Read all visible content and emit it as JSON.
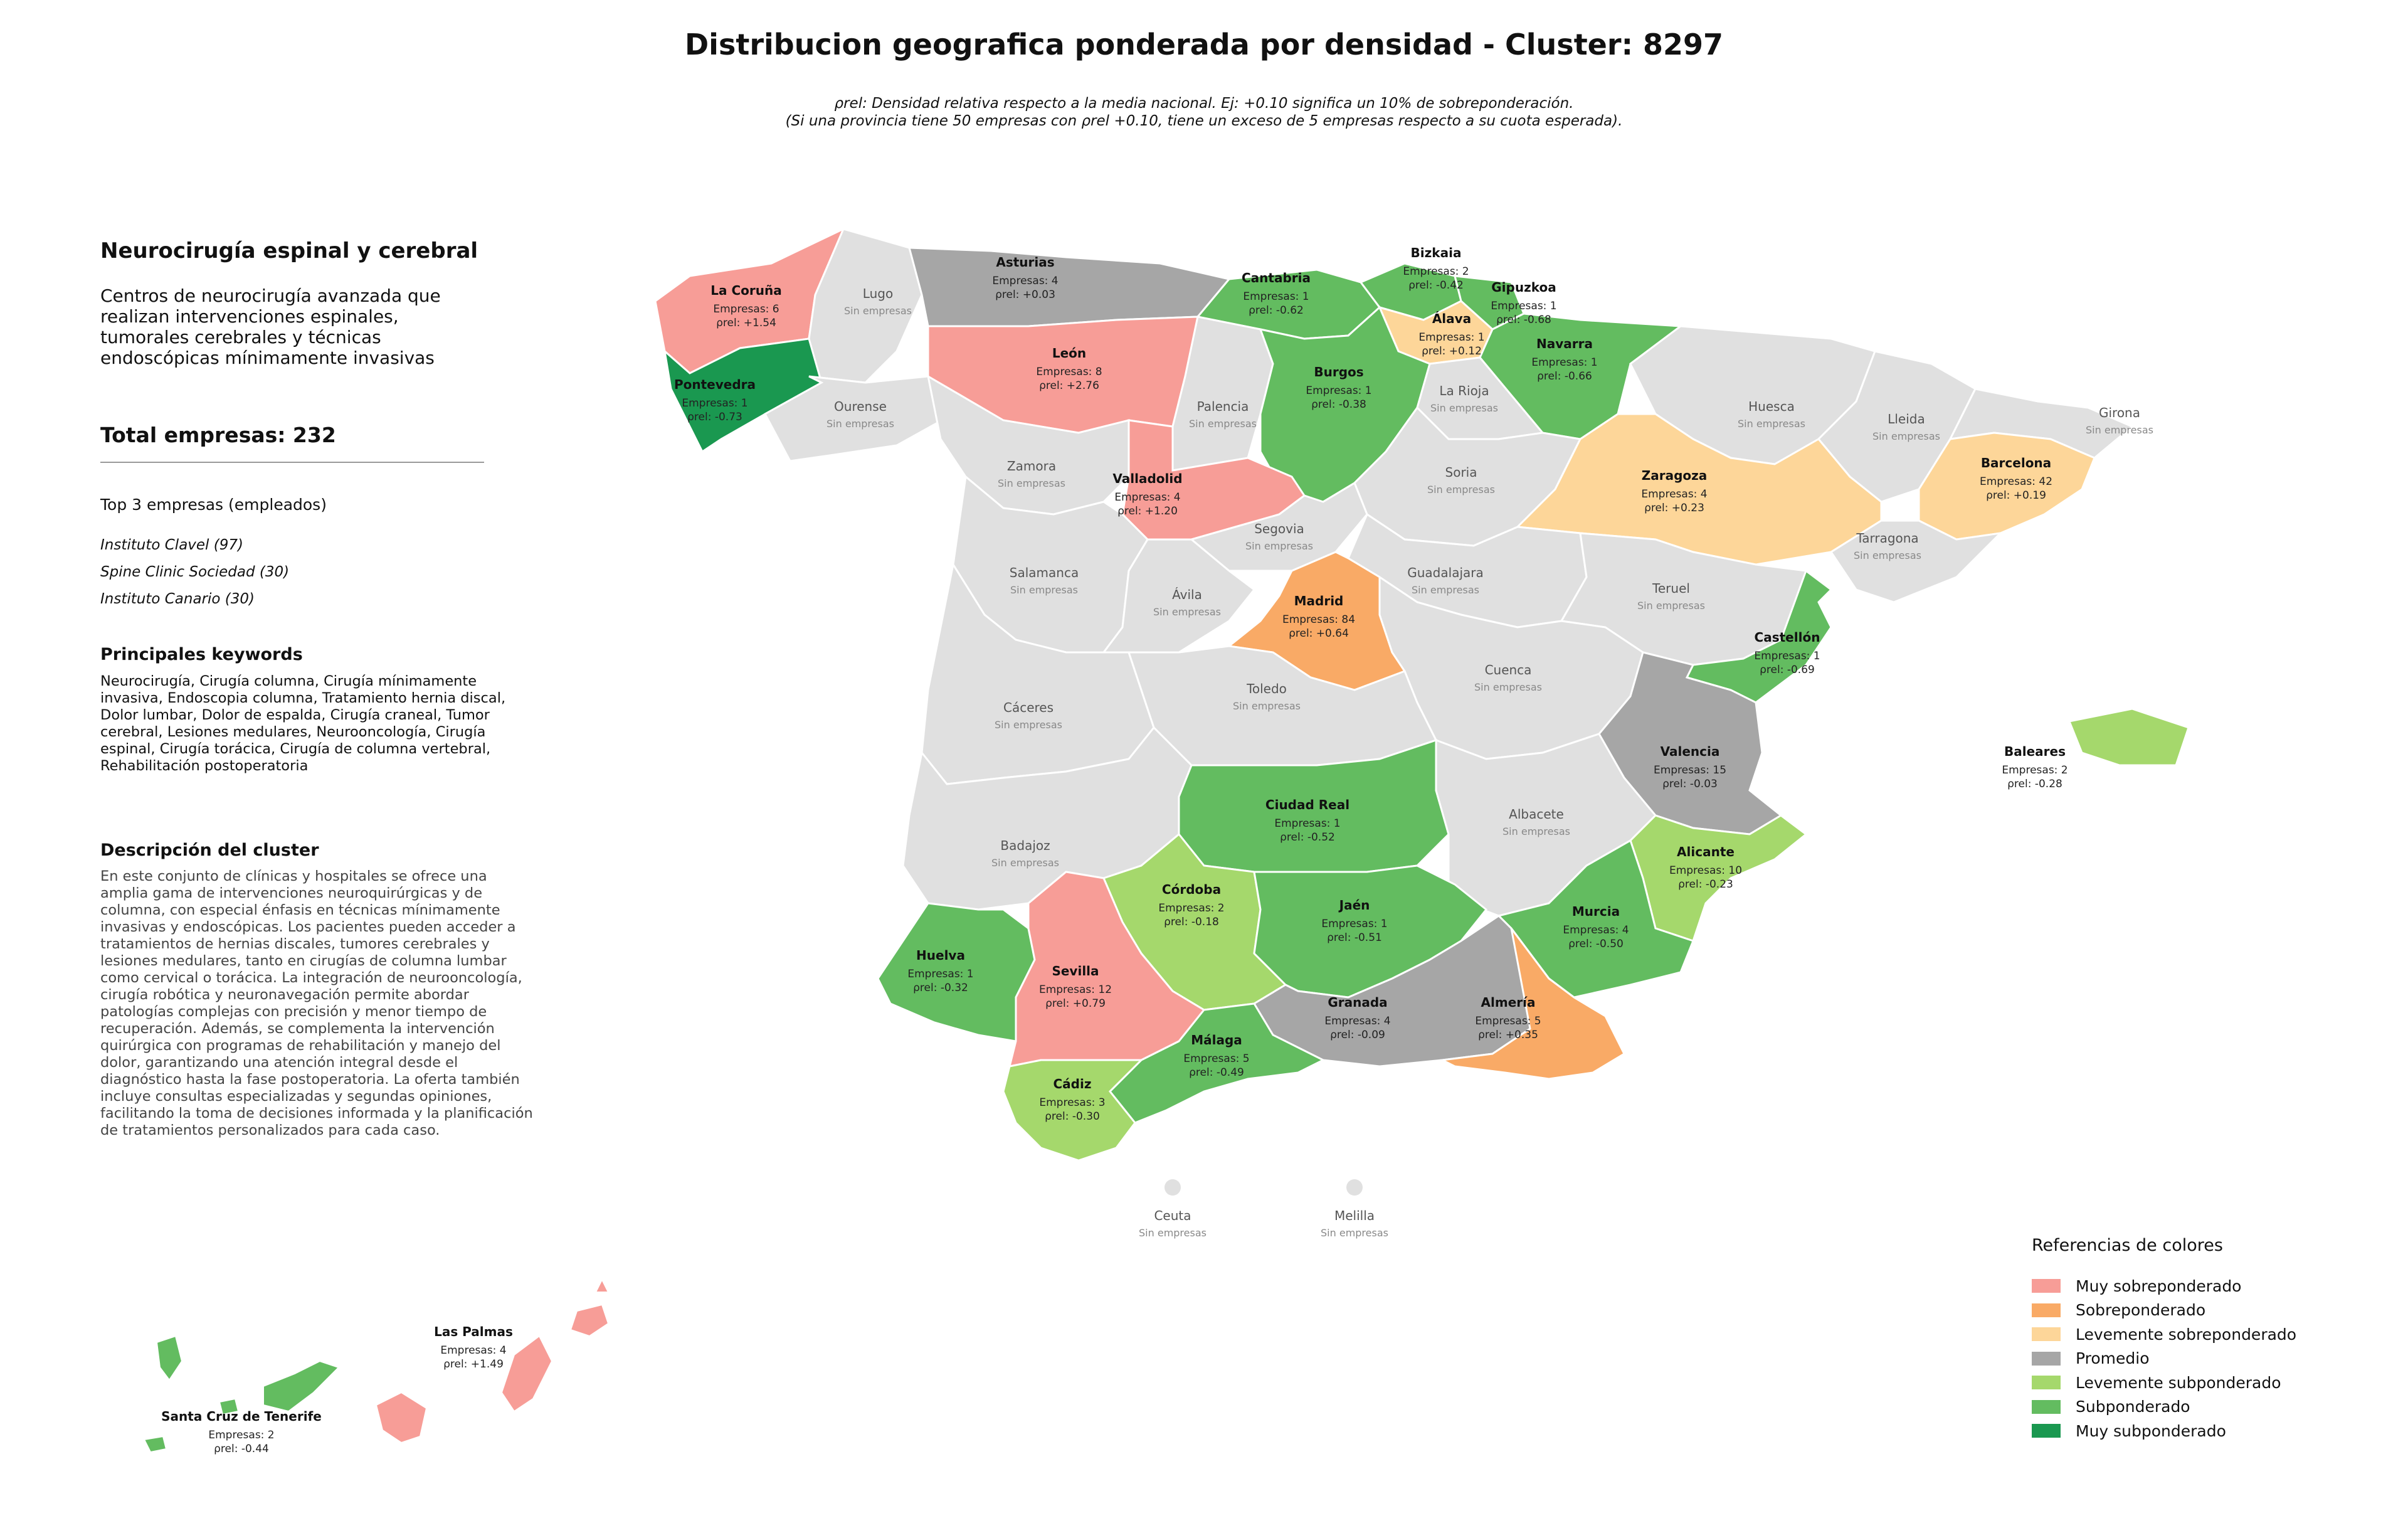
{
  "title": "Distribucion geografica ponderada por densidad - Cluster: 8297",
  "subtitle_line1": "ρrel: Densidad relativa respecto a la media nacional. Ej: +0.10 significa un 10% de sobreponderación.",
  "subtitle_line2": "(Si una provincia tiene 50 empresas con ρrel +0.10, tiene un exceso de 5 empresas respecto a su cuota esperada).",
  "cluster": {
    "name": "Neurocirugía espinal y cerebral",
    "summary": "Centros de neurocirugía avanzada que realizan intervenciones espinales, tumorales cerebrales y técnicas endoscópicas mínimamente invasivas",
    "total_label": "Total empresas: 232",
    "top3_heading": "Top 3 empresas (empleados)",
    "top3": [
      "Instituto Clavel (97)",
      "Spine Clinic Sociedad (30)",
      "Instituto Canario (30)"
    ],
    "keywords_heading": "Principales keywords",
    "keywords": "Neurocirugía, Cirugía columna, Cirugía mínimamente invasiva, Endoscopia columna, Tratamiento hernia discal, Dolor lumbar, Dolor de espalda, Cirugía craneal, Tumor cerebral, Lesiones medulares, Neurooncología, Cirugía espinal, Cirugía torácica, Cirugía de columna vertebral, Rehabilitación postoperatoria",
    "description_heading": "Descripción del cluster",
    "description": "En este conjunto de clínicas y hospitales se ofrece una amplia gama de intervenciones neuroquirúrgicas y de columna, con especial énfasis en técnicas mínimamente invasivas y endoscópicas. Los pacientes pueden acceder a tratamientos de hernias discales, tumores cerebrales y lesiones medulares, tanto en cirugías de columna lumbar como cervical o torácica. La integración de neurooncología, cirugía robótica y neuronavegación permite abordar patologías complejas con precisión y menor tiempo de recuperación. Además, se complementa la intervención quirúrgica con programas de rehabilitación y manejo del dolor, garantizando una atención integral desde el diagnóstico hasta la fase postoperatoria. La oferta también incluye consultas especializadas y segundas opiniones, facilitando la toma de decisiones informada y la planificación de tratamientos personalizados para cada caso."
  },
  "colors": {
    "muy_sobre": "#f79d97",
    "sobre": "#f9aa66",
    "lev_sobre": "#fdd699",
    "promedio": "#a6a6a6",
    "lev_sub": "#a5d86c",
    "sub": "#63bc60",
    "muy_sub": "#1a9850",
    "none": "#e0e0e0"
  },
  "legend": {
    "title": "Referencias de colores",
    "items": [
      {
        "label": "Muy sobreponderado",
        "key": "muy_sobre"
      },
      {
        "label": "Sobreponderado",
        "key": "sobre"
      },
      {
        "label": "Levemente sobreponderado",
        "key": "lev_sobre"
      },
      {
        "label": "Promedio",
        "key": "promedio"
      },
      {
        "label": "Levemente subponderado",
        "key": "lev_sub"
      },
      {
        "label": "Subponderado",
        "key": "sub"
      },
      {
        "label": "Muy subponderado",
        "key": "muy_sub"
      }
    ]
  },
  "empresas_prefix": "Empresas: ",
  "rho_prefix": "ρrel: ",
  "no_data_label": "Sin empresas",
  "provinces": [
    {
      "name": "La Coruña",
      "companies": 6,
      "rho": "+1.54",
      "cat": "muy_sobre"
    },
    {
      "name": "Lugo",
      "companies": null,
      "rho": null,
      "cat": "none"
    },
    {
      "name": "Asturias",
      "companies": 4,
      "rho": "+0.03",
      "cat": "promedio"
    },
    {
      "name": "Cantabria",
      "companies": 1,
      "rho": "-0.62",
      "cat": "sub"
    },
    {
      "name": "Bizkaia",
      "companies": 2,
      "rho": "-0.42",
      "cat": "sub"
    },
    {
      "name": "Gipuzkoa",
      "companies": 1,
      "rho": "-0.68",
      "cat": "sub"
    },
    {
      "name": "Álava",
      "companies": 1,
      "rho": "+0.12",
      "cat": "lev_sobre"
    },
    {
      "name": "Navarra",
      "companies": 1,
      "rho": "-0.66",
      "cat": "sub"
    },
    {
      "name": "Pontevedra",
      "companies": 1,
      "rho": "-0.73",
      "cat": "muy_sub"
    },
    {
      "name": "Ourense",
      "companies": null,
      "rho": null,
      "cat": "none"
    },
    {
      "name": "León",
      "companies": 8,
      "rho": "+2.76",
      "cat": "muy_sobre"
    },
    {
      "name": "Palencia",
      "companies": null,
      "rho": null,
      "cat": "none"
    },
    {
      "name": "Burgos",
      "companies": 1,
      "rho": "-0.38",
      "cat": "sub"
    },
    {
      "name": "La Rioja",
      "companies": null,
      "rho": null,
      "cat": "none"
    },
    {
      "name": "Huesca",
      "companies": null,
      "rho": null,
      "cat": "none"
    },
    {
      "name": "Lleida",
      "companies": null,
      "rho": null,
      "cat": "none"
    },
    {
      "name": "Girona",
      "companies": null,
      "rho": null,
      "cat": "none"
    },
    {
      "name": "Barcelona",
      "companies": 42,
      "rho": "+0.19",
      "cat": "lev_sobre"
    },
    {
      "name": "Zamora",
      "companies": null,
      "rho": null,
      "cat": "none"
    },
    {
      "name": "Valladolid",
      "companies": 4,
      "rho": "+1.20",
      "cat": "muy_sobre"
    },
    {
      "name": "Soria",
      "companies": null,
      "rho": null,
      "cat": "none"
    },
    {
      "name": "Zaragoza",
      "companies": 4,
      "rho": "+0.23",
      "cat": "lev_sobre"
    },
    {
      "name": "Tarragona",
      "companies": null,
      "rho": null,
      "cat": "none"
    },
    {
      "name": "Segovia",
      "companies": null,
      "rho": null,
      "cat": "none"
    },
    {
      "name": "Salamanca",
      "companies": null,
      "rho": null,
      "cat": "none"
    },
    {
      "name": "Ávila",
      "companies": null,
      "rho": null,
      "cat": "none"
    },
    {
      "name": "Guadalajara",
      "companies": null,
      "rho": null,
      "cat": "none"
    },
    {
      "name": "Teruel",
      "companies": null,
      "rho": null,
      "cat": "none"
    },
    {
      "name": "Madrid",
      "companies": 84,
      "rho": "+0.64",
      "cat": "sobre"
    },
    {
      "name": "Castellón",
      "companies": 1,
      "rho": "-0.69",
      "cat": "sub"
    },
    {
      "name": "Cuenca",
      "companies": null,
      "rho": null,
      "cat": "none"
    },
    {
      "name": "Cáceres",
      "companies": null,
      "rho": null,
      "cat": "none"
    },
    {
      "name": "Toledo",
      "companies": null,
      "rho": null,
      "cat": "none"
    },
    {
      "name": "Valencia",
      "companies": 15,
      "rho": "-0.03",
      "cat": "promedio"
    },
    {
      "name": "Baleares",
      "companies": 2,
      "rho": "-0.28",
      "cat": "lev_sub"
    },
    {
      "name": "Ciudad Real",
      "companies": 1,
      "rho": "-0.52",
      "cat": "sub"
    },
    {
      "name": "Albacete",
      "companies": null,
      "rho": null,
      "cat": "none"
    },
    {
      "name": "Badajoz",
      "companies": null,
      "rho": null,
      "cat": "none"
    },
    {
      "name": "Alicante",
      "companies": 10,
      "rho": "-0.23",
      "cat": "lev_sub"
    },
    {
      "name": "Córdoba",
      "companies": 2,
      "rho": "-0.18",
      "cat": "lev_sub"
    },
    {
      "name": "Jaén",
      "companies": 1,
      "rho": "-0.51",
      "cat": "sub"
    },
    {
      "name": "Murcia",
      "companies": 4,
      "rho": "-0.50",
      "cat": "sub"
    },
    {
      "name": "Huelva",
      "companies": 1,
      "rho": "-0.32",
      "cat": "sub"
    },
    {
      "name": "Sevilla",
      "companies": 12,
      "rho": "+0.79",
      "cat": "muy_sobre"
    },
    {
      "name": "Granada",
      "companies": 4,
      "rho": "-0.09",
      "cat": "promedio"
    },
    {
      "name": "Almería",
      "companies": 5,
      "rho": "+0.35",
      "cat": "sobre"
    },
    {
      "name": "Málaga",
      "companies": 5,
      "rho": "-0.49",
      "cat": "sub"
    },
    {
      "name": "Cádiz",
      "companies": 3,
      "rho": "-0.30",
      "cat": "lev_sub"
    },
    {
      "name": "Ceuta",
      "companies": null,
      "rho": null,
      "cat": "none"
    },
    {
      "name": "Melilla",
      "companies": null,
      "rho": null,
      "cat": "none"
    },
    {
      "name": "Las Palmas",
      "companies": 4,
      "rho": "+1.49",
      "cat": "muy_sobre"
    },
    {
      "name": "Santa Cruz de Tenerife",
      "companies": 2,
      "rho": "-0.44",
      "cat": "sub"
    }
  ]
}
